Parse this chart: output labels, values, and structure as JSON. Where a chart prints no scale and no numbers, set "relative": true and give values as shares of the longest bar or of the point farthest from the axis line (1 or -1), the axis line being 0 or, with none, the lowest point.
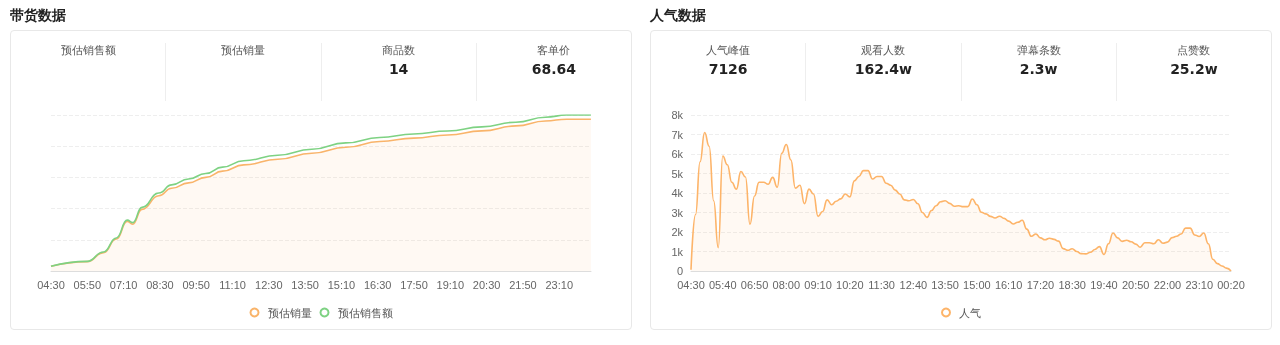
{
  "chart_data": [
    {
      "type": "line",
      "title": "带货数据",
      "relative": true,
      "grid": "y",
      "legend": "bottom",
      "marker": "none",
      "xlim": [
        4.5,
        24.3333
      ],
      "xticks": [
        {
          "value": 4.5,
          "label": "04:30"
        },
        {
          "value": 5.8333,
          "label": "05:50"
        },
        {
          "value": 7.1667,
          "label": "07:10"
        },
        {
          "value": 8.5,
          "label": "08:30"
        },
        {
          "value": 9.8333,
          "label": "09:50"
        },
        {
          "value": 11.1667,
          "label": "11:10"
        },
        {
          "value": 12.5,
          "label": "12:30"
        },
        {
          "value": 13.8333,
          "label": "13:50"
        },
        {
          "value": 15.1667,
          "label": "15:10"
        },
        {
          "value": 16.5,
          "label": "16:30"
        },
        {
          "value": 17.8333,
          "label": "17:50"
        },
        {
          "value": 19.1667,
          "label": "19:10"
        },
        {
          "value": 20.5,
          "label": "20:30"
        },
        {
          "value": 21.8333,
          "label": "21:50"
        },
        {
          "value": 23.1667,
          "label": "23:10"
        }
      ],
      "x": [
        4.5,
        5.83,
        6.43,
        6.9,
        7.3,
        7.5,
        7.84,
        8.46,
        8.93,
        9.55,
        10.18,
        10.8,
        11.58,
        12.83,
        14.08,
        15.33,
        16.57,
        17.82,
        19.07,
        20.32,
        21.57,
        22.66,
        23.44,
        24.33
      ],
      "series": [
        {
          "name": "预估销量",
          "type": "area",
          "color": "#f9b46a",
          "values": [
            0.03,
            0.06,
            0.118,
            0.205,
            0.318,
            0.3,
            0.395,
            0.482,
            0.53,
            0.565,
            0.6,
            0.64,
            0.68,
            0.716,
            0.755,
            0.793,
            0.83,
            0.852,
            0.872,
            0.898,
            0.93,
            0.962,
            0.973,
            0.973
          ]
        },
        {
          "name": "预估销售额",
          "type": "line",
          "color": "#7ed283",
          "values": [
            0.03,
            0.062,
            0.122,
            0.212,
            0.326,
            0.31,
            0.408,
            0.5,
            0.552,
            0.59,
            0.625,
            0.666,
            0.707,
            0.742,
            0.78,
            0.821,
            0.856,
            0.878,
            0.897,
            0.924,
            0.954,
            0.986,
            1,
            1
          ]
        }
      ]
    },
    {
      "type": "other",
      "title": "预估销售额"
    },
    {
      "type": "other",
      "title": "预估销量"
    },
    {
      "type": "other",
      "title": "商品数",
      "annotations": [
        "14"
      ]
    },
    {
      "type": "other",
      "title": "客单价",
      "annotations": [
        "68.64"
      ]
    },
    {
      "type": "area",
      "title": "人气数据",
      "grid": "y",
      "legend": "bottom",
      "marker": "none",
      "ylim": [
        0,
        8000
      ],
      "yticks": [
        0,
        {
          "value": 1000,
          "label": "1k"
        },
        {
          "value": 2000,
          "label": "2k"
        },
        {
          "value": 3000,
          "label": "3k"
        },
        {
          "value": 4000,
          "label": "4k"
        },
        {
          "value": 5000,
          "label": "5k"
        },
        {
          "value": 6000,
          "label": "6k"
        },
        {
          "value": 7000,
          "label": "7k"
        },
        {
          "value": 8000,
          "label": "8k"
        }
      ],
      "categories": [
        "04:30",
        null,
        null,
        null,
        null,
        null,
        null,
        "05:40",
        null,
        null,
        null,
        null,
        null,
        null,
        "06:50",
        null,
        null,
        null,
        null,
        null,
        null,
        "08:00",
        null,
        null,
        null,
        null,
        null,
        null,
        "09:10",
        null,
        null,
        null,
        null,
        null,
        null,
        "10:20",
        null,
        null,
        null,
        null,
        null,
        null,
        "11:30",
        null,
        null,
        null,
        null,
        null,
        null,
        "12:40",
        null,
        null,
        null,
        null,
        null,
        null,
        "13:50",
        null,
        null,
        null,
        null,
        null,
        null,
        "15:00",
        null,
        null,
        null,
        null,
        null,
        null,
        "16:10",
        null,
        null,
        null,
        null,
        null,
        null,
        "17:20",
        null,
        null,
        null,
        null,
        null,
        null,
        "18:30",
        null,
        null,
        null,
        null,
        null,
        null,
        "19:40",
        null,
        null,
        null,
        null,
        null,
        null,
        "20:50",
        null,
        null,
        null,
        null,
        null,
        null,
        "22:00",
        null,
        null,
        null,
        null,
        null,
        null,
        "23:10",
        null,
        null,
        null,
        null,
        null,
        null,
        "00:20"
      ],
      "series": [
        {
          "name": "人气",
          "color": "#fdb469",
          "values": [
            60,
            2900,
            5600,
            7100,
            6400,
            3600,
            1200,
            5900,
            5450,
            4550,
            4200,
            5100,
            4820,
            2400,
            3850,
            4550,
            4550,
            4450,
            4800,
            4300,
            6040,
            6490,
            5700,
            4250,
            4400,
            3450,
            4200,
            3950,
            2800,
            3050,
            3650,
            3400,
            3580,
            3700,
            3950,
            3800,
            4620,
            4850,
            5150,
            5150,
            4720,
            4850,
            4850,
            4500,
            4400,
            4150,
            3950,
            3650,
            3600,
            3670,
            3450,
            3000,
            2750,
            3100,
            3350,
            3550,
            3600,
            3470,
            3320,
            3350,
            3300,
            3300,
            3690,
            3400,
            3010,
            2930,
            2800,
            2720,
            2810,
            2700,
            2560,
            2410,
            2500,
            2600,
            2150,
            1780,
            1900,
            1700,
            1600,
            1680,
            1620,
            1530,
            1150,
            1060,
            1140,
            1000,
            890,
            880,
            960,
            1100,
            1250,
            850,
            1400,
            1950,
            1700,
            1520,
            1580,
            1500,
            1380,
            1220,
            1450,
            1450,
            1400,
            1600,
            1420,
            1480,
            1710,
            1780,
            1900,
            2200,
            2200,
            1850,
            1770,
            1950,
            1400,
            600,
            380,
            260,
            150,
            0
          ]
        }
      ]
    },
    {
      "type": "other",
      "title": "人气峰值",
      "annotations": [
        "7126"
      ]
    },
    {
      "type": "other",
      "title": "观看人数",
      "annotations": [
        "162.4w"
      ]
    },
    {
      "type": "other",
      "title": "弹幕条数",
      "annotations": [
        "2.3w"
      ]
    },
    {
      "type": "other",
      "title": "点赞数",
      "annotations": [
        "25.2w"
      ]
    }
  ]
}
